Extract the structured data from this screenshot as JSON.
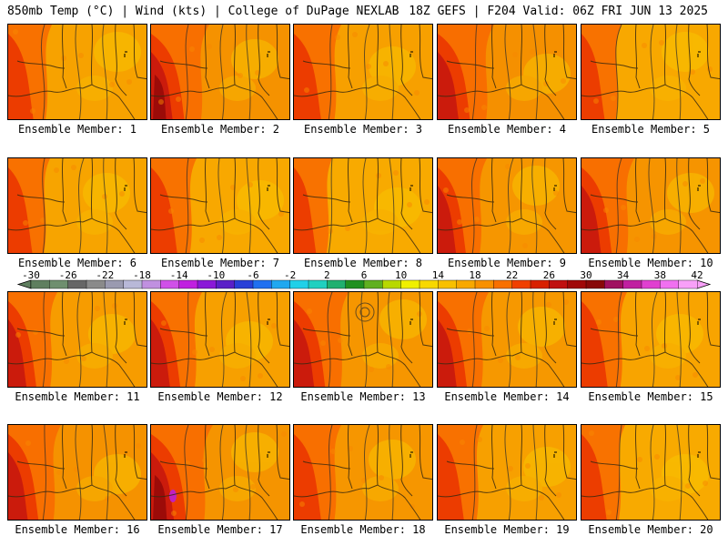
{
  "header": {
    "left": "850mb Temp (°C) | Wind (kts) | College of DuPage NEXLAB",
    "right": "18Z GEFS | F204 Valid: 06Z FRI JUN 13 2025"
  },
  "panels": [
    {
      "label": "Ensemble Member: 1",
      "base": "#f7a200",
      "hot": 0.45
    },
    {
      "label": "Ensemble Member: 2",
      "base": "#f59200",
      "hot": 0.85
    },
    {
      "label": "Ensemble Member: 3",
      "base": "#f7a000",
      "hot": 0.55
    },
    {
      "label": "Ensemble Member: 4",
      "base": "#f59000",
      "hot": 0.8
    },
    {
      "label": "Ensemble Member: 5",
      "base": "#f8a800",
      "hot": 0.35
    },
    {
      "label": "Ensemble Member: 6",
      "base": "#f7a400",
      "hot": 0.4
    },
    {
      "label": "Ensemble Member: 7",
      "base": "#f8a800",
      "hot": 0.5
    },
    {
      "label": "Ensemble Member: 8",
      "base": "#f8aa00",
      "hot": 0.3
    },
    {
      "label": "Ensemble Member: 9",
      "base": "#f69600",
      "hot": 0.6
    },
    {
      "label": "Ensemble Member: 10",
      "base": "#f69400",
      "hot": 0.7
    },
    {
      "label": "Ensemble Member: 11",
      "base": "#f79c00",
      "hot": 0.6
    },
    {
      "label": "Ensemble Member: 12",
      "base": "#f7a000",
      "hot": 0.65
    },
    {
      "label": "Ensemble Member: 13",
      "base": "#f69600",
      "hot": 0.75
    },
    {
      "label": "Ensemble Member: 14",
      "base": "#f69800",
      "hot": 0.65
    },
    {
      "label": "Ensemble Member: 15",
      "base": "#f8a400",
      "hot": 0.5
    },
    {
      "label": "Ensemble Member: 16",
      "base": "#f59200",
      "hot": 0.7
    },
    {
      "label": "Ensemble Member: 17",
      "base": "#f59400",
      "hot": 0.95
    },
    {
      "label": "Ensemble Member: 18",
      "base": "#f69600",
      "hot": 0.55
    },
    {
      "label": "Ensemble Member: 19",
      "base": "#f7a000",
      "hot": 0.5
    },
    {
      "label": "Ensemble Member: 20",
      "base": "#f8aa00",
      "hot": 0.45
    }
  ],
  "colorbar": {
    "labels": [
      "-30",
      "-26",
      "-22",
      "-18",
      "-14",
      "-10",
      "-6",
      "-2",
      "2",
      "6",
      "10",
      "14",
      "18",
      "22",
      "26",
      "30",
      "34",
      "38",
      "42"
    ],
    "colors": [
      "#5f7f5f",
      "#6f8f6f",
      "#666666",
      "#8a8a8a",
      "#9a9ab0",
      "#b8b8d8",
      "#c090e0",
      "#d050e8",
      "#c020e0",
      "#8a18d8",
      "#5a20c8",
      "#2840d8",
      "#2070f0",
      "#20a8f0",
      "#20d0e8",
      "#20d0c0",
      "#20b070",
      "#209020",
      "#60b020",
      "#b8d800",
      "#f0f000",
      "#f8d800",
      "#f8c000",
      "#f8a800",
      "#f89000",
      "#f87000",
      "#f04000",
      "#d82000",
      "#c01010",
      "#a00808",
      "#880808",
      "#a01060",
      "#c020a0",
      "#e040d0",
      "#f070f0",
      "#f8a0f8"
    ]
  }
}
